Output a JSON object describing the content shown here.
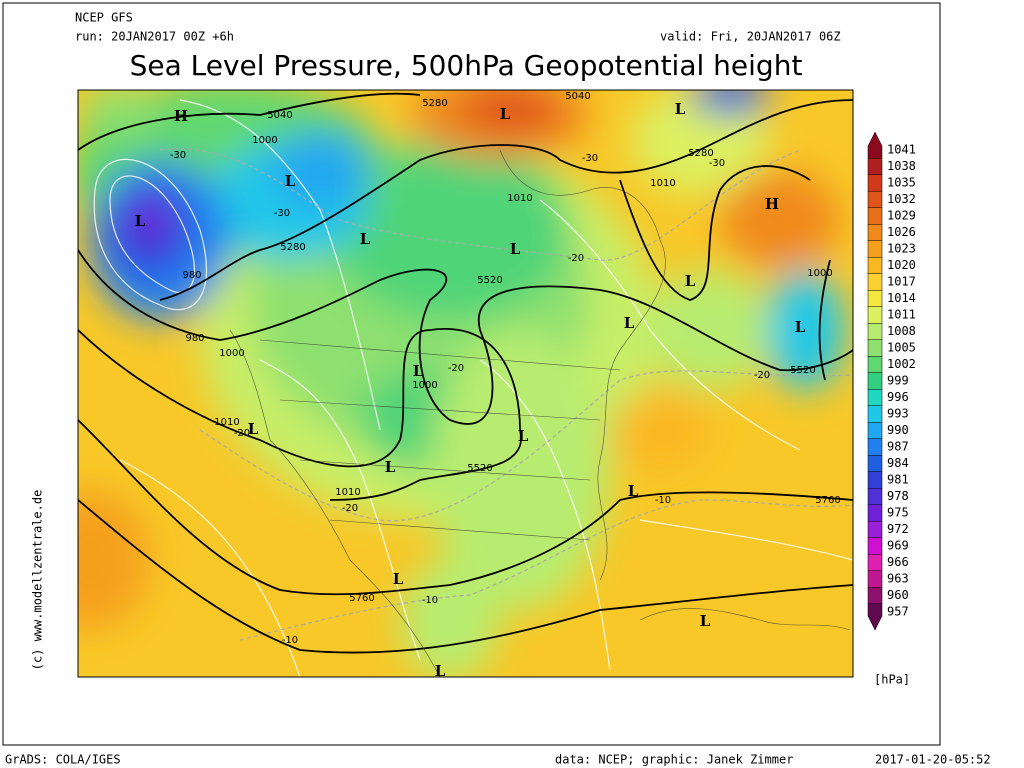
{
  "header": {
    "model": "NCEP GFS",
    "run": "run: 20JAN2017 00Z +6h",
    "valid": "valid: Fri, 20JAN2017 06Z",
    "title": "Sea Level Pressure, 500hPa Geopotential height"
  },
  "map": {
    "centers": [
      "H",
      "L",
      "L",
      "L",
      "L",
      "L",
      "L",
      "L",
      "L",
      "L",
      "L",
      "L",
      "L",
      "H",
      "L",
      "L",
      "L",
      "L",
      "L"
    ],
    "contour_labels": [
      "5040",
      "1000",
      "-30",
      "-30",
      "5280",
      "980",
      "980",
      "1000",
      "1010",
      "-20",
      "1010",
      "-20",
      "5760",
      "-10",
      "-10",
      "5520",
      "-20",
      "1000",
      "5520",
      "1010",
      "-20",
      "5280",
      "5040",
      "-30",
      "5280",
      "-30",
      "1010",
      "1000",
      "5520",
      "-20",
      "-10",
      "5760"
    ]
  },
  "colorbar": {
    "levels": [
      1041,
      1038,
      1035,
      1032,
      1029,
      1026,
      1023,
      1020,
      1017,
      1014,
      1011,
      1008,
      1005,
      1002,
      999,
      996,
      993,
      990,
      987,
      984,
      981,
      978,
      975,
      972,
      969,
      966,
      963,
      960,
      957
    ],
    "colors": [
      "#8b0a1e",
      "#b0201e",
      "#d03a1a",
      "#e0561a",
      "#e87018",
      "#f08a1a",
      "#f5a01a",
      "#fab820",
      "#fcd030",
      "#f6e640",
      "#dcf060",
      "#b8ec70",
      "#8ee070",
      "#60d870",
      "#30d080",
      "#20d8c0",
      "#20c8e8",
      "#20a8f0",
      "#2080f0",
      "#2060e0",
      "#3040d8",
      "#5030d8",
      "#7020d8",
      "#9a20d8",
      "#d010d0",
      "#e020b0",
      "#c01890",
      "#901070",
      "#600850"
    ],
    "unit": "[hPa]"
  },
  "watermark": "(c) www.modellzentrale.de",
  "footer": {
    "left": "GrADS: COLA/IGES",
    "credit": "data: NCEP; graphic: Janek Zimmer",
    "timestamp": "2017-01-20-05:52"
  }
}
